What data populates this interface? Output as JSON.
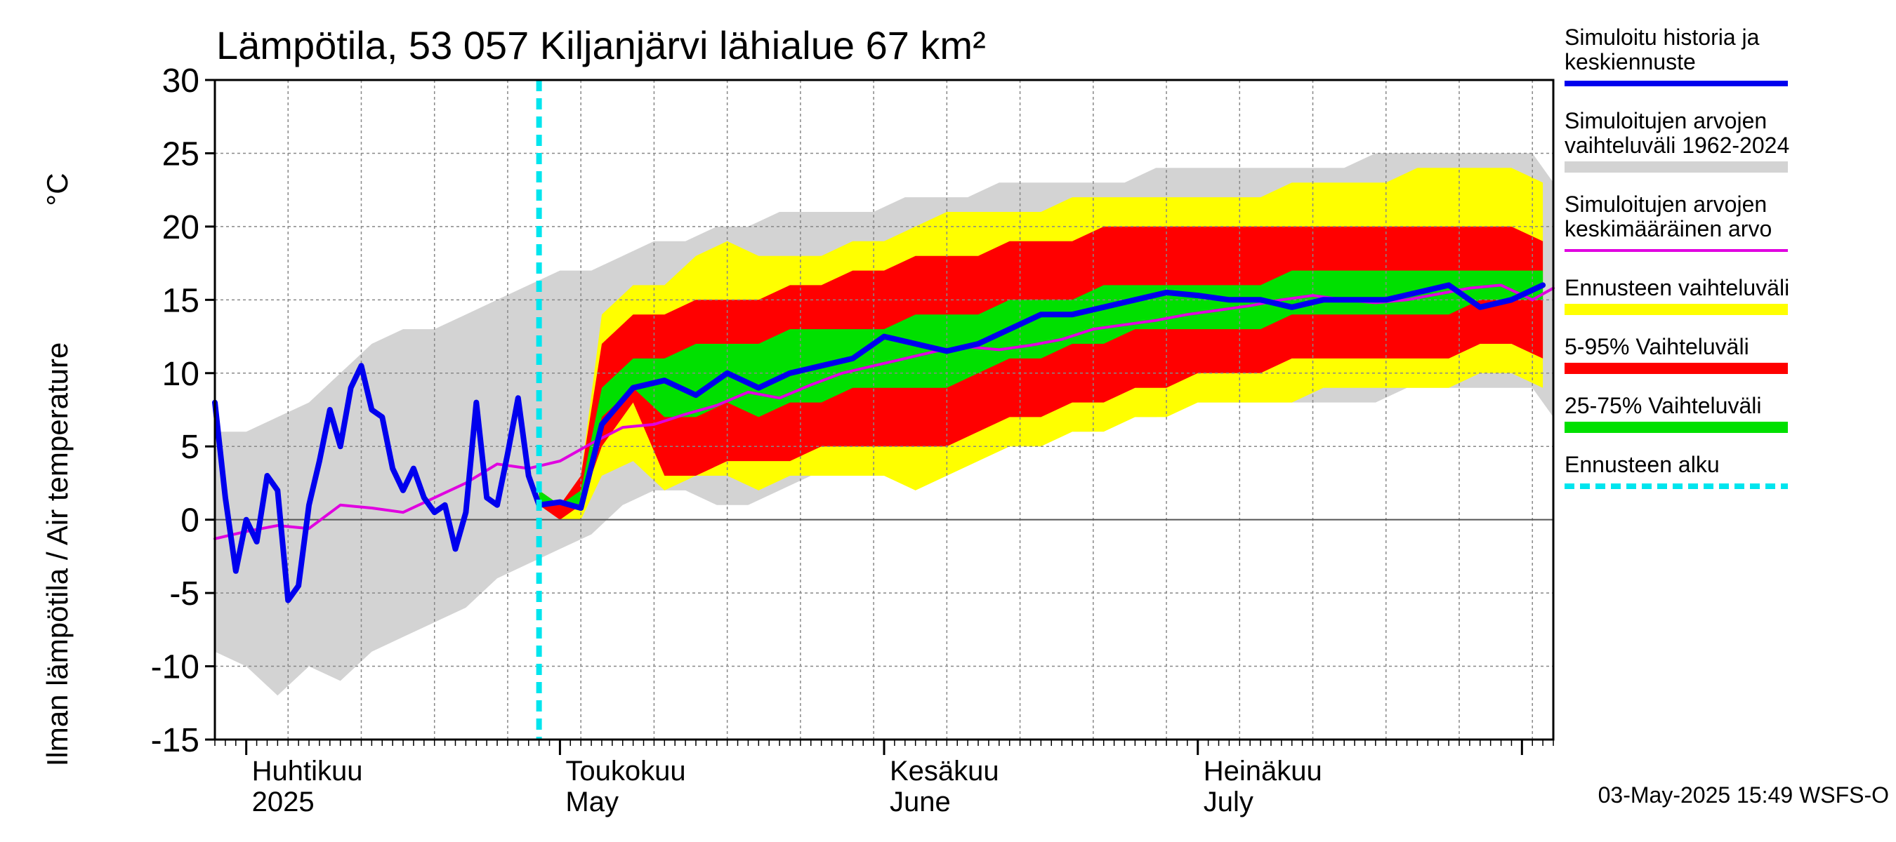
{
  "chart_data": {
    "type": "area",
    "title": "Lämpötila, 53 057 Kiljanjärvi lähialue 67 km²",
    "ylabel": "Ilman lämpötila / Air temperature",
    "yunit": "°C",
    "ylim": [
      -15,
      30
    ],
    "yticks": [
      -15,
      -10,
      -5,
      0,
      5,
      10,
      15,
      20,
      25,
      30
    ],
    "xlim": [
      "2025-03-29",
      "2025-08-04"
    ],
    "grid": true,
    "legend_position": "right",
    "x_month_labels": [
      {
        "date": "2025-04-01",
        "fi": "Huhtikuu",
        "en": "2025"
      },
      {
        "date": "2025-05-01",
        "fi": "Toukokuu",
        "en": "May"
      },
      {
        "date": "2025-06-01",
        "fi": "Kesäkuu",
        "en": "June"
      },
      {
        "date": "2025-07-01",
        "fi": "Heinäkuu",
        "en": "July"
      }
    ],
    "forecast_start": "2025-04-29",
    "dates_hist": [
      "2025-03-29",
      "2025-04-01",
      "2025-04-04",
      "2025-04-07",
      "2025-04-10",
      "2025-04-13",
      "2025-04-16",
      "2025-04-19",
      "2025-04-22",
      "2025-04-25",
      "2025-04-28",
      "2025-05-01",
      "2025-05-04",
      "2025-05-07",
      "2025-05-10",
      "2025-05-13",
      "2025-05-16",
      "2025-05-19",
      "2025-05-22",
      "2025-05-25",
      "2025-05-28",
      "2025-05-31",
      "2025-06-03",
      "2025-06-06",
      "2025-06-09",
      "2025-06-12",
      "2025-06-15",
      "2025-06-18",
      "2025-06-21",
      "2025-06-24",
      "2025-06-27",
      "2025-06-30",
      "2025-07-03",
      "2025-07-06",
      "2025-07-09",
      "2025-07-12",
      "2025-07-15",
      "2025-07-18",
      "2025-07-21",
      "2025-07-24",
      "2025-07-27",
      "2025-07-30",
      "2025-08-02",
      "2025-08-04"
    ],
    "hist_min": [
      -9,
      -10,
      -12,
      -10,
      -11,
      -9,
      -8,
      -7,
      -6,
      -4,
      -3,
      -2,
      -1,
      1,
      2,
      2,
      1,
      1,
      2,
      3,
      3,
      4,
      4,
      4,
      5,
      5,
      5,
      6,
      6,
      7,
      7,
      8,
      8,
      8,
      8,
      8,
      8,
      8,
      9,
      9,
      9,
      9,
      9,
      7
    ],
    "hist_max": [
      6,
      6,
      7,
      8,
      10,
      12,
      13,
      13,
      14,
      15,
      16,
      17,
      17,
      18,
      19,
      19,
      20,
      20,
      21,
      21,
      21,
      21,
      22,
      22,
      22,
      23,
      23,
      23,
      23,
      23,
      24,
      24,
      24,
      24,
      24,
      24,
      24,
      25,
      25,
      25,
      25,
      25,
      25,
      23
    ],
    "dates_fc": [
      "2025-04-29",
      "2025-05-01",
      "2025-05-03",
      "2025-05-05",
      "2025-05-08",
      "2025-05-11",
      "2025-05-14",
      "2025-05-17",
      "2025-05-20",
      "2025-05-23",
      "2025-05-26",
      "2025-05-29",
      "2025-06-01",
      "2025-06-04",
      "2025-06-07",
      "2025-06-10",
      "2025-06-13",
      "2025-06-16",
      "2025-06-19",
      "2025-06-22",
      "2025-06-25",
      "2025-06-28",
      "2025-07-01",
      "2025-07-04",
      "2025-07-07",
      "2025-07-10",
      "2025-07-13",
      "2025-07-16",
      "2025-07-19",
      "2025-07-22",
      "2025-07-25",
      "2025-07-28",
      "2025-07-31",
      "2025-08-03"
    ],
    "fc_min": [
      1,
      0,
      0,
      3,
      4,
      2,
      3,
      3,
      2,
      3,
      3,
      3,
      3,
      2,
      3,
      4,
      5,
      5,
      6,
      6,
      7,
      7,
      8,
      8,
      8,
      8,
      9,
      9,
      9,
      9,
      9,
      10,
      10,
      9
    ],
    "fc_p05": [
      1,
      0,
      1,
      5,
      8,
      3,
      3,
      4,
      4,
      4,
      5,
      5,
      5,
      5,
      5,
      6,
      7,
      7,
      8,
      8,
      9,
      9,
      10,
      10,
      10,
      11,
      11,
      11,
      11,
      11,
      11,
      12,
      12,
      11
    ],
    "fc_p25": [
      1,
      1,
      1,
      7,
      9,
      7,
      7,
      8,
      7,
      8,
      8,
      9,
      9,
      9,
      9,
      10,
      11,
      11,
      12,
      12,
      13,
      13,
      13,
      13,
      13,
      14,
      14,
      14,
      14,
      14,
      14,
      15,
      15,
      15
    ],
    "fc_p75": [
      2,
      1,
      2,
      9,
      11,
      11,
      12,
      12,
      12,
      13,
      13,
      13,
      13,
      14,
      14,
      14,
      15,
      15,
      15,
      16,
      16,
      16,
      16,
      16,
      16,
      17,
      17,
      17,
      17,
      17,
      17,
      17,
      17,
      17
    ],
    "fc_p95": [
      2,
      1,
      3,
      12,
      14,
      14,
      15,
      15,
      15,
      16,
      16,
      17,
      17,
      18,
      18,
      18,
      19,
      19,
      19,
      20,
      20,
      20,
      20,
      20,
      20,
      20,
      20,
      20,
      20,
      20,
      20,
      20,
      20,
      19
    ],
    "fc_max": [
      2,
      1,
      3,
      14,
      16,
      16,
      18,
      19,
      18,
      18,
      18,
      19,
      19,
      20,
      21,
      21,
      21,
      21,
      22,
      22,
      22,
      22,
      22,
      22,
      22,
      23,
      23,
      23,
      23,
      24,
      24,
      24,
      24,
      23
    ],
    "dates_mean": [
      "2025-03-29",
      "2025-04-01",
      "2025-04-04",
      "2025-04-07",
      "2025-04-10",
      "2025-04-13",
      "2025-04-16",
      "2025-04-19",
      "2025-04-22",
      "2025-04-25",
      "2025-04-28",
      "2025-05-01",
      "2025-05-04",
      "2025-05-07",
      "2025-05-10",
      "2025-05-13",
      "2025-05-16",
      "2025-05-19",
      "2025-05-22",
      "2025-05-25",
      "2025-05-28",
      "2025-05-31",
      "2025-06-03",
      "2025-06-06",
      "2025-06-09",
      "2025-06-12",
      "2025-06-15",
      "2025-06-18",
      "2025-06-21",
      "2025-06-24",
      "2025-06-27",
      "2025-06-30",
      "2025-07-03",
      "2025-07-06",
      "2025-07-09",
      "2025-07-12",
      "2025-07-15",
      "2025-07-18",
      "2025-07-21",
      "2025-07-24",
      "2025-07-27",
      "2025-07-30",
      "2025-08-02",
      "2025-08-04"
    ],
    "mean_values": [
      -1.3,
      -0.8,
      -0.4,
      -0.6,
      1,
      0.8,
      0.5,
      1.5,
      2.5,
      3.8,
      3.5,
      4,
      5.2,
      6.3,
      6.5,
      7.2,
      7.8,
      8.7,
      8.3,
      9.2,
      10,
      10.5,
      11,
      11.5,
      11.8,
      11.6,
      11.9,
      12.3,
      13,
      13.3,
      13.6,
      14,
      14.3,
      14.6,
      15,
      15.3,
      15,
      14.8,
      15,
      15.4,
      15.8,
      16,
      15,
      15.8
    ],
    "dates_sim": [
      "2025-03-29",
      "2025-03-30",
      "2025-03-31",
      "2025-04-01",
      "2025-04-02",
      "2025-04-03",
      "2025-04-04",
      "2025-04-05",
      "2025-04-06",
      "2025-04-07",
      "2025-04-08",
      "2025-04-09",
      "2025-04-10",
      "2025-04-11",
      "2025-04-12",
      "2025-04-13",
      "2025-04-14",
      "2025-04-15",
      "2025-04-16",
      "2025-04-17",
      "2025-04-18",
      "2025-04-19",
      "2025-04-20",
      "2025-04-21",
      "2025-04-22",
      "2025-04-23",
      "2025-04-24",
      "2025-04-25",
      "2025-04-26",
      "2025-04-27",
      "2025-04-28",
      "2025-04-29",
      "2025-05-01",
      "2025-05-03",
      "2025-05-05",
      "2025-05-08",
      "2025-05-11",
      "2025-05-14",
      "2025-05-17",
      "2025-05-20",
      "2025-05-23",
      "2025-05-26",
      "2025-05-29",
      "2025-06-01",
      "2025-06-04",
      "2025-06-07",
      "2025-06-10",
      "2025-06-13",
      "2025-06-16",
      "2025-06-19",
      "2025-06-22",
      "2025-06-25",
      "2025-06-28",
      "2025-07-01",
      "2025-07-04",
      "2025-07-07",
      "2025-07-10",
      "2025-07-13",
      "2025-07-16",
      "2025-07-19",
      "2025-07-22",
      "2025-07-25",
      "2025-07-28",
      "2025-07-31",
      "2025-08-03"
    ],
    "sim_values": [
      8,
      1.5,
      -3.5,
      0,
      -1.5,
      3,
      2,
      -5.5,
      -4.5,
      1,
      4,
      7.5,
      5,
      9,
      10.5,
      7.5,
      7,
      3.5,
      2,
      3.5,
      1.5,
      0.5,
      1,
      -2,
      0.5,
      8,
      1.5,
      1,
      4.5,
      8.3,
      3,
      1,
      1.2,
      0.8,
      6.5,
      9,
      9.5,
      8.5,
      10,
      9,
      10,
      10.5,
      11,
      12.5,
      12,
      11.5,
      12,
      13,
      14,
      14,
      14.5,
      15,
      15.5,
      15.3,
      15,
      15,
      14.5,
      15,
      15,
      15,
      15.5,
      16,
      14.5,
      15,
      16
    ]
  },
  "legend": [
    {
      "label": "Simuloitu historia ja keskiennuste",
      "lines": [
        "Simuloitu historia ja",
        "keskiennuste"
      ],
      "color": "#0000ee",
      "kind": "line"
    },
    {
      "label": "Simuloitujen arvojen vaihteluväli 1962-2024",
      "lines": [
        "Simuloitujen arvojen",
        "vaihteluväli 1962-2024"
      ],
      "color": "#d3d3d3",
      "kind": "band"
    },
    {
      "label": "Simuloitujen arvojen keskimääräinen arvo",
      "lines": [
        "Simuloitujen arvojen",
        "keskimääräinen arvo"
      ],
      "color": "#e000e0",
      "kind": "line"
    },
    {
      "label": "Ennusteen vaihteluväli",
      "lines": [
        "Ennusteen vaihteluväli"
      ],
      "color": "#ffff00",
      "kind": "band"
    },
    {
      "label": "5-95% Vaihteluväli",
      "lines": [
        "5-95% Vaihteluväli"
      ],
      "color": "#ff0000",
      "kind": "band"
    },
    {
      "label": "25-75% Vaihteluväli",
      "lines": [
        "25-75% Vaihteluväli"
      ],
      "color": "#00e000",
      "kind": "band"
    },
    {
      "label": "Ennusteen alku",
      "lines": [
        "Ennusteen alku"
      ],
      "color": "#00e5ee",
      "kind": "dashed"
    }
  ],
  "footer": "03-May-2025 15:49 WSFS-O",
  "colors": {
    "hist_band": "#d3d3d3",
    "fc_range": "#ffff00",
    "p05_95": "#ff0000",
    "p25_75": "#00e000",
    "sim_line": "#0000ee",
    "mean_line": "#e000e0",
    "forecast_start": "#00e5ee"
  }
}
